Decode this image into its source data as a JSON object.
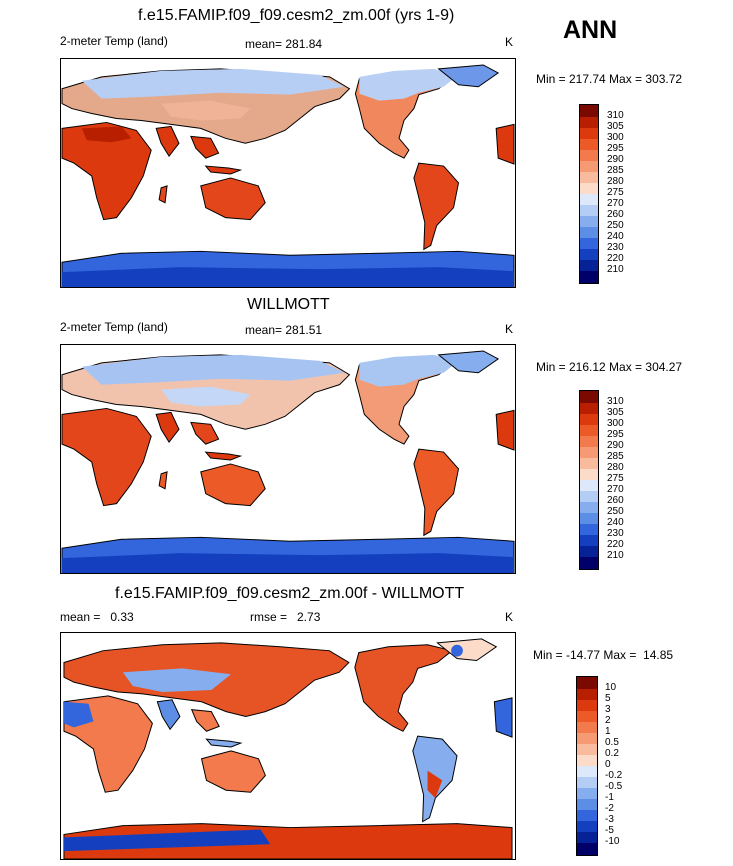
{
  "header": {
    "season": "ANN"
  },
  "panels": [
    {
      "title": "f.e15.FAMIP.f09_f09.cesm2_zm.00f (yrs 1-9)",
      "left_label": "2-meter Temp (land)",
      "center_label": "mean= 281.84",
      "units": "K",
      "minmax": "Min = 217.74 Max = 303.72",
      "levels": [
        "310",
        "305",
        "300",
        "295",
        "290",
        "285",
        "280",
        "275",
        "270",
        "260",
        "250",
        "240",
        "230",
        "220",
        "210"
      ],
      "colors": [
        "#7a0a00",
        "#b81e00",
        "#dc3a0e",
        "#ec5a28",
        "#f27a4c",
        "#f69a74",
        "#f9bb9e",
        "#fcdcc8",
        "#dde8fb",
        "#b3cdf5",
        "#86aeee",
        "#5d8ee6",
        "#3366dd",
        "#1440c0",
        "#062296",
        "#000068"
      ]
    },
    {
      "title": "WILLMOTT",
      "left_label": "2-meter Temp (land)",
      "center_label": "mean= 281.51",
      "units": "K",
      "minmax": "Min = 216.12 Max = 304.27",
      "levels": [
        "310",
        "305",
        "300",
        "295",
        "290",
        "285",
        "280",
        "275",
        "270",
        "260",
        "250",
        "240",
        "230",
        "220",
        "210"
      ],
      "colors": [
        "#7a0a00",
        "#b81e00",
        "#dc3a0e",
        "#ec5a28",
        "#f27a4c",
        "#f69a74",
        "#f9bb9e",
        "#fcdcc8",
        "#dde8fb",
        "#b3cdf5",
        "#86aeee",
        "#5d8ee6",
        "#3366dd",
        "#1440c0",
        "#062296",
        "#000068"
      ]
    },
    {
      "title": "f.e15.FAMIP.f09_f09.cesm2_zm.00f - WILLMOTT",
      "left_label": "mean =   0.33",
      "center_label": "rmse =   2.73",
      "units": "K",
      "minmax": "Min = -14.77 Max =  14.85",
      "levels": [
        "10",
        "5",
        "3",
        "2",
        "1",
        "0.5",
        "0.2",
        "0",
        "-0.2",
        "-0.5",
        "-1",
        "-2",
        "-3",
        "-5",
        "-10"
      ],
      "colors": [
        "#7a0a00",
        "#b81e00",
        "#dc3a0e",
        "#ec5a28",
        "#f27a4c",
        "#f69a74",
        "#f9bb9e",
        "#fcdcc8",
        "#dde8fb",
        "#b3cdf5",
        "#86aeee",
        "#5d8ee6",
        "#3366dd",
        "#1440c0",
        "#062296",
        "#000068"
      ]
    }
  ],
  "chart_data": [
    {
      "type": "heatmap",
      "title": "f.e15.FAMIP.f09_f09.cesm2_zm.00f (yrs 1-9)",
      "variable": "2-meter Temp (land)",
      "units": "K",
      "mean": 281.84,
      "min": 217.74,
      "max": 303.72,
      "contour_levels": [
        210,
        220,
        230,
        240,
        250,
        260,
        270,
        275,
        280,
        285,
        290,
        295,
        300,
        305,
        310
      ]
    },
    {
      "type": "heatmap",
      "title": "WILLMOTT",
      "variable": "2-meter Temp (land)",
      "units": "K",
      "mean": 281.51,
      "min": 216.12,
      "max": 304.27,
      "contour_levels": [
        210,
        220,
        230,
        240,
        250,
        260,
        270,
        275,
        280,
        285,
        290,
        295,
        300,
        305,
        310
      ]
    },
    {
      "type": "heatmap",
      "title": "f.e15.FAMIP.f09_f09.cesm2_zm.00f - WILLMOTT",
      "units": "K",
      "mean": 0.33,
      "rmse": 2.73,
      "min": -14.77,
      "max": 14.85,
      "contour_levels": [
        -10,
        -5,
        -3,
        -2,
        -1,
        -0.5,
        -0.2,
        0,
        0.2,
        0.5,
        1,
        2,
        3,
        5,
        10
      ]
    }
  ]
}
